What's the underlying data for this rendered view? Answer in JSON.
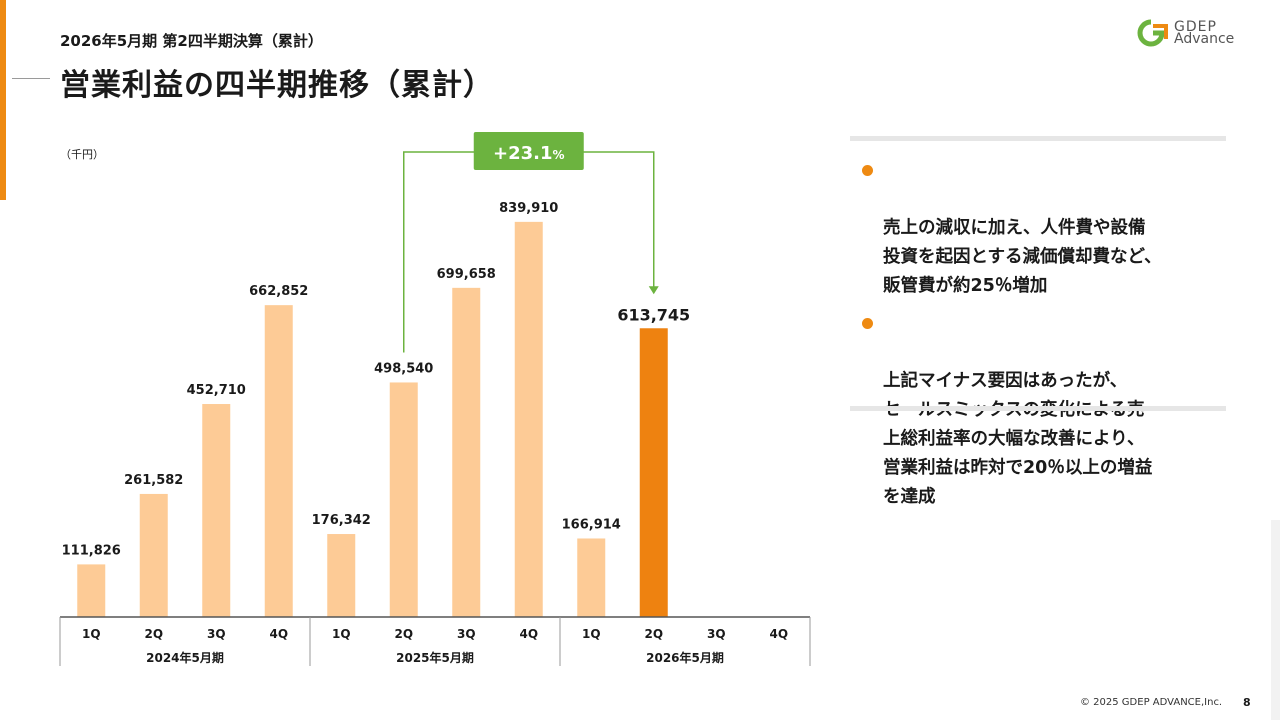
{
  "header": {
    "subtitle": "2026年5月期 第2四半期決算（累計）",
    "title": "営業利益の四半期推移（累計）"
  },
  "logo": {
    "line1": "GDEP",
    "line2": "Advance"
  },
  "chart_data": {
    "type": "bar",
    "unit_label": "（千円）",
    "groups": [
      {
        "label": "2024年5月期",
        "quarters": [
          "1Q",
          "2Q",
          "3Q",
          "4Q"
        ],
        "values": [
          111826,
          261582,
          452710,
          662852
        ],
        "value_labels": [
          "111,826",
          "261,582",
          "452,710",
          "662,852"
        ]
      },
      {
        "label": "2025年5月期",
        "quarters": [
          "1Q",
          "2Q",
          "3Q",
          "4Q"
        ],
        "values": [
          176342,
          498540,
          699658,
          839910
        ],
        "value_labels": [
          "176,342",
          "498,540",
          "699,658",
          "839,910"
        ]
      },
      {
        "label": "2026年5月期",
        "quarters": [
          "1Q",
          "2Q",
          "3Q",
          "4Q"
        ],
        "values": [
          166914,
          613745,
          null,
          null
        ],
        "value_labels": [
          "166,914",
          "613,745",
          "",
          ""
        ]
      }
    ],
    "highlight": {
      "group": 2,
      "quarter": 1
    },
    "annotation": {
      "text": "+23.1",
      "suffix": "%",
      "from": {
        "group": 1,
        "quarter": 1
      },
      "to": {
        "group": 2,
        "quarter": 1
      }
    },
    "ylim": [
      0,
      880000
    ],
    "colors": {
      "bar": "#fdcb96",
      "highlight": "#ee8210",
      "annotation": "#6cb33f",
      "axis": "#555555"
    }
  },
  "bullets": [
    {
      "text": "売上の減収に加え、人件費や設備\n投資を起因とする減価償却費など、\n販管費が約25％増加"
    },
    {
      "text": "上記マイナス要因はあったが、\nセールスミックスの変化による売\n上総利益率の大幅な改善により、\n営業利益は昨対で20％以上の増益\nを達成"
    }
  ],
  "footer": {
    "copyright": "© 2025 GDEP ADVANCE,Inc.",
    "page": "8"
  }
}
